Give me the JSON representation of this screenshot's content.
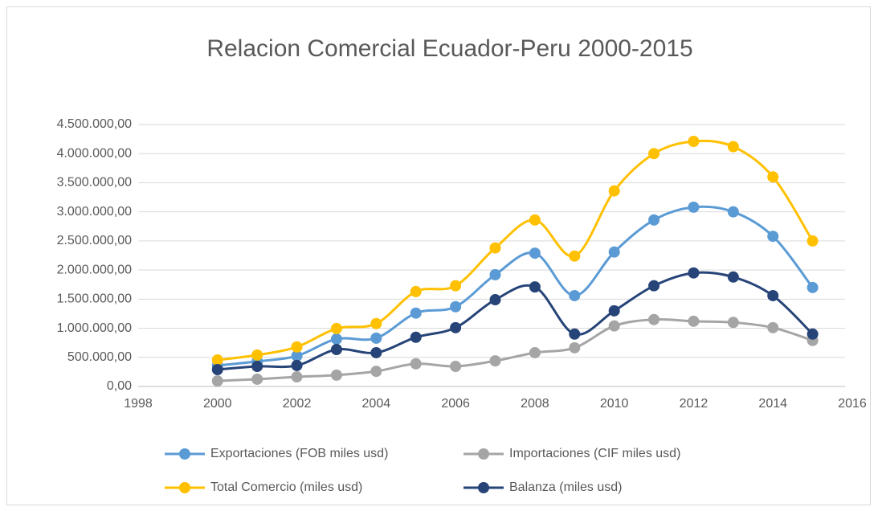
{
  "chart_data": {
    "type": "line",
    "title": "Relacion Comercial Ecuador-Peru 2000-2015",
    "x": [
      2000,
      2001,
      2002,
      2003,
      2004,
      2005,
      2006,
      2007,
      2008,
      2009,
      2010,
      2011,
      2012,
      2013,
      2014,
      2015
    ],
    "series": [
      {
        "name": "Exportaciones (FOB miles usd)",
        "color": "#5b9bd5",
        "values": [
          360000,
          430000,
          525000,
          815000,
          830000,
          1260000,
          1370000,
          1920000,
          2290000,
          1560000,
          2310000,
          2860000,
          3080000,
          3000000,
          2580000,
          1700000
        ]
      },
      {
        "name": "Importaciones (CIF miles usd)",
        "color": "#a5a5a5",
        "values": [
          95000,
          125000,
          165000,
          195000,
          260000,
          390000,
          345000,
          440000,
          580000,
          665000,
          1040000,
          1150000,
          1120000,
          1100000,
          1010000,
          790000
        ]
      },
      {
        "name": "Total Comercio (miles usd)",
        "color": "#ffc000",
        "values": [
          455000,
          540000,
          680000,
          995000,
          1080000,
          1630000,
          1730000,
          2380000,
          2860000,
          2240000,
          3360000,
          4000000,
          4210000,
          4120000,
          3600000,
          2500000
        ]
      },
      {
        "name": "Balanza (miles usd)",
        "color": "#264478",
        "values": [
          290000,
          345000,
          360000,
          635000,
          580000,
          845000,
          1010000,
          1490000,
          1710000,
          900000,
          1300000,
          1730000,
          1950000,
          1880000,
          1560000,
          900000
        ]
      }
    ],
    "xlim": [
      1998,
      2016
    ],
    "xticks": [
      1998,
      2000,
      2002,
      2004,
      2006,
      2008,
      2010,
      2012,
      2014,
      2016
    ],
    "ylim": [
      0,
      4500000
    ],
    "yticks": [
      {
        "value": 0,
        "label": "0,00"
      },
      {
        "value": 500000,
        "label": "500.000,00"
      },
      {
        "value": 1000000,
        "label": "1.000.000,00"
      },
      {
        "value": 1500000,
        "label": "1.500.000,00"
      },
      {
        "value": 2000000,
        "label": "2.000.000,00"
      },
      {
        "value": 2500000,
        "label": "2.500.000,00"
      },
      {
        "value": 3000000,
        "label": "3.000.000,00"
      },
      {
        "value": 3500000,
        "label": "3.500.000,00"
      },
      {
        "value": 4000000,
        "label": "4.000.000,00"
      },
      {
        "value": 4500000,
        "label": "4.500.000,00"
      }
    ],
    "grid": true,
    "smooth": true,
    "legend": "bottom"
  }
}
